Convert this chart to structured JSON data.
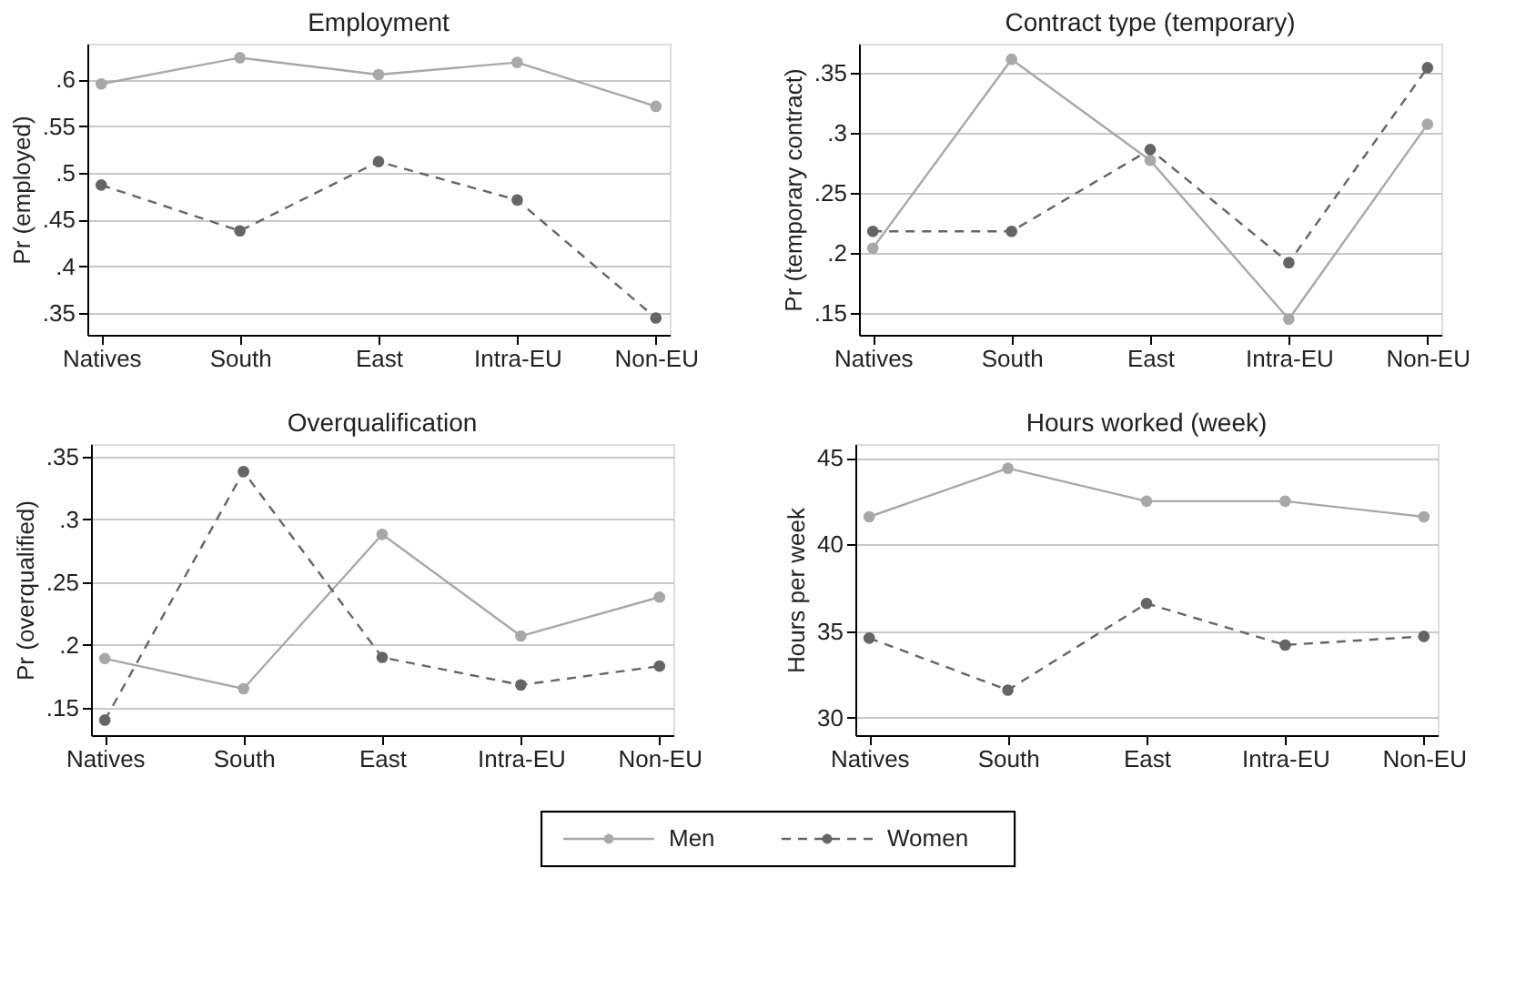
{
  "chart_data": [
    {
      "type": "line",
      "title": "Employment",
      "ylabel": "Pr (employed)",
      "categories": [
        "Natives",
        "South",
        "East",
        "Intra-EU",
        "Non-EU"
      ],
      "series": [
        {
          "name": "Men",
          "color": "#a8a8a8",
          "line_style": "solid",
          "values": [
            0.595,
            0.623,
            0.605,
            0.618,
            0.571
          ]
        },
        {
          "name": "Women",
          "color": "#656565",
          "line_style": "dashed",
          "values": [
            0.487,
            0.438,
            0.512,
            0.471,
            0.345
          ]
        }
      ],
      "ylim": [
        0.327,
        0.638
      ],
      "yticks": [
        {
          "value": 0.35,
          "label": ".35"
        },
        {
          "value": 0.4,
          "label": ".4"
        },
        {
          "value": 0.45,
          "label": ".45"
        },
        {
          "value": 0.5,
          "label": ".5"
        },
        {
          "value": 0.55,
          "label": ".55"
        },
        {
          "value": 0.6,
          "label": ".6"
        }
      ],
      "grid": "y",
      "marker": "circle",
      "legend": "bottom"
    },
    {
      "type": "line",
      "title": "Contract type (temporary)",
      "ylabel": "Pr (temporary contract)",
      "categories": [
        "Natives",
        "South",
        "East",
        "Intra-EU",
        "Non-EU"
      ],
      "series": [
        {
          "name": "Men",
          "color": "#a8a8a8",
          "line_style": "solid",
          "values": [
            0.204,
            0.361,
            0.277,
            0.145,
            0.307
          ]
        },
        {
          "name": "Women",
          "color": "#656565",
          "line_style": "dashed",
          "values": [
            0.218,
            0.218,
            0.286,
            0.192,
            0.354
          ]
        }
      ],
      "ylim": [
        0.132,
        0.374
      ],
      "yticks": [
        {
          "value": 0.15,
          "label": ".15"
        },
        {
          "value": 0.2,
          "label": ".2"
        },
        {
          "value": 0.25,
          "label": ".25"
        },
        {
          "value": 0.3,
          "label": ".3"
        },
        {
          "value": 0.35,
          "label": ".35"
        }
      ],
      "grid": "y",
      "marker": "circle",
      "legend": "bottom"
    },
    {
      "type": "line",
      "title": "Overqualification",
      "ylabel": "Pr (overqualified)",
      "categories": [
        "Natives",
        "South",
        "East",
        "Intra-EU",
        "Non-EU"
      ],
      "series": [
        {
          "name": "Men",
          "color": "#a8a8a8",
          "line_style": "solid",
          "values": [
            0.189,
            0.165,
            0.288,
            0.207,
            0.238
          ]
        },
        {
          "name": "Women",
          "color": "#656565",
          "line_style": "dashed",
          "values": [
            0.14,
            0.338,
            0.19,
            0.168,
            0.183
          ]
        }
      ],
      "ylim": [
        0.128,
        0.36
      ],
      "yticks": [
        {
          "value": 0.15,
          "label": ".15"
        },
        {
          "value": 0.2,
          "label": ".2"
        },
        {
          "value": 0.25,
          "label": ".25"
        },
        {
          "value": 0.3,
          "label": ".3"
        },
        {
          "value": 0.35,
          "label": ".35"
        }
      ],
      "grid": "y",
      "marker": "circle",
      "legend": "bottom"
    },
    {
      "type": "line",
      "title": "Hours worked (week)",
      "ylabel": "Hours per week",
      "categories": [
        "Natives",
        "South",
        "East",
        "Intra-EU",
        "Non-EU"
      ],
      "series": [
        {
          "name": "Men",
          "color": "#a8a8a8",
          "line_style": "solid",
          "values": [
            41.6,
            44.4,
            42.5,
            42.5,
            41.6
          ]
        },
        {
          "name": "Women",
          "color": "#656565",
          "line_style": "dashed",
          "values": [
            34.6,
            31.6,
            36.6,
            34.2,
            34.7
          ]
        }
      ],
      "ylim": [
        29.0,
        45.8
      ],
      "yticks": [
        30,
        35,
        40,
        45
      ],
      "grid": "y",
      "marker": "circle",
      "legend": "bottom"
    }
  ]
}
